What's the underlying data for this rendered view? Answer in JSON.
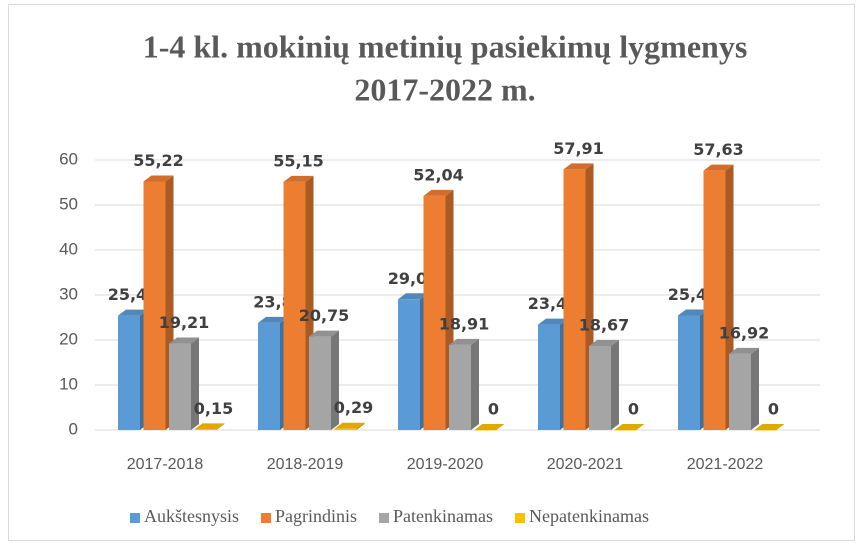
{
  "chart_data": {
    "type": "bar3d",
    "title": [
      "1-4 kl. mokinių metinių pasiekimų lygmenys",
      "2017-2022 m."
    ],
    "categories": [
      "2017-2018",
      "2018-2019",
      "2019-2020",
      "2020-2021",
      "2021-2022"
    ],
    "series": [
      {
        "name": "Aukštesnysis",
        "color": "#5b9bd5",
        "values": [
          25.42,
          23.8,
          29.05,
          23.42,
          25.45
        ],
        "value_labels": [
          "25,42",
          "23,8",
          "29,05",
          "23,42",
          "25,45"
        ]
      },
      {
        "name": "Pagrindinis",
        "color": "#ed7d31",
        "values": [
          55.22,
          55.15,
          52.04,
          57.91,
          57.63
        ],
        "value_labels": [
          "55,22",
          "55,15",
          "52,04",
          "57,91",
          "57,63"
        ]
      },
      {
        "name": "Patenkinamas",
        "color": "#a5a5a5",
        "values": [
          19.21,
          20.75,
          18.91,
          18.67,
          16.92
        ],
        "value_labels": [
          "19,21",
          "20,75",
          "18,91",
          "18,67",
          "16,92"
        ]
      },
      {
        "name": "Nepatenkinamas",
        "color": "#ffc000",
        "values": [
          0.15,
          0.29,
          0,
          0,
          0
        ],
        "value_labels": [
          "0,15",
          "0,29",
          "0",
          "0",
          "0"
        ]
      }
    ],
    "ylim": [
      0,
      60
    ],
    "yticks": [
      0,
      10,
      20,
      30,
      40,
      50,
      60
    ],
    "grid": true,
    "legend": "bottom"
  }
}
